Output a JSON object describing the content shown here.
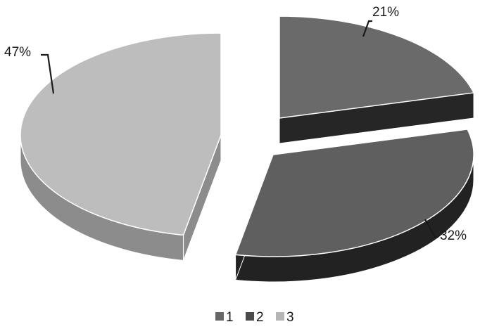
{
  "chart_data": {
    "type": "pie",
    "categories": [
      "1",
      "2",
      "3"
    ],
    "values": [
      21,
      32,
      47
    ],
    "data_labels": [
      "21%",
      "32%",
      "47%"
    ],
    "style": "3d-exploded",
    "legend": {
      "position": "bottom",
      "entries": [
        "1",
        "2",
        "3"
      ]
    },
    "title": "",
    "colors": {
      "1": {
        "top": "#6a6a6a",
        "side": "#262626"
      },
      "2": {
        "top": "#5f5f5f",
        "side": "#222222"
      },
      "3": {
        "top": "#bdbdbd",
        "side": "#8c8c8c"
      }
    }
  }
}
